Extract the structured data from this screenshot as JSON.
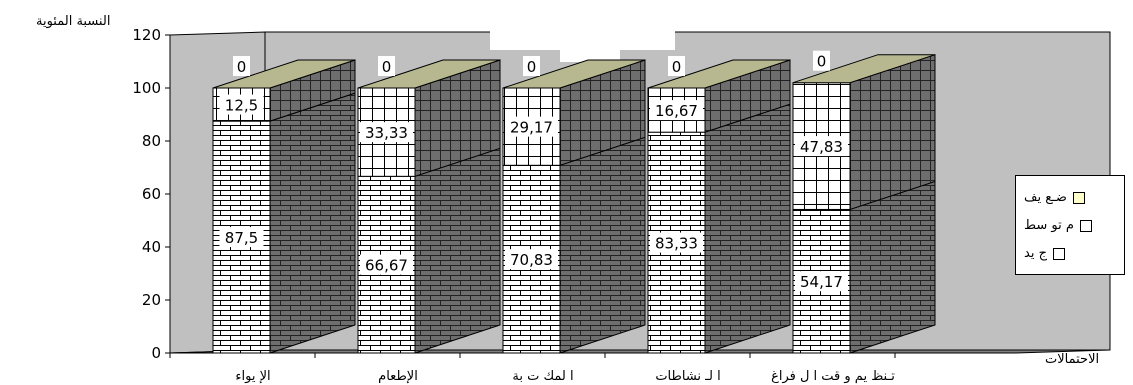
{
  "chart_data": {
    "type": "bar",
    "stacked": true,
    "three_d": true,
    "title": "",
    "ylabel": "النسبة المئوية",
    "xlabel": "الاحتمالات",
    "ylim": [
      0,
      120
    ],
    "yticks": [
      0,
      20,
      40,
      60,
      80,
      100,
      120
    ],
    "categories": [
      "الإ يواء",
      "الإطعام",
      "ا لمك ت بة",
      "ا لـ نشاطات",
      "تـنظ يم و قت ا ل فراغ"
    ],
    "series": [
      {
        "name": "ج يد",
        "values": [
          87.5,
          66.67,
          70.83,
          83.33,
          54.17
        ],
        "labels": [
          "87,5",
          "66,67",
          "70,83",
          "83,33",
          "54,17"
        ]
      },
      {
        "name": "م تو سط",
        "values": [
          12.5,
          33.33,
          29.17,
          16.67,
          47.83
        ],
        "labels": [
          "12,5",
          "33,33",
          "29,17",
          "16,67",
          "47,83"
        ]
      },
      {
        "name": "ضـع يف",
        "values": [
          0,
          0,
          0,
          0,
          0
        ],
        "labels": [
          "0",
          "0",
          "0",
          "0",
          "0"
        ]
      }
    ],
    "legend_position": "right",
    "grid": false,
    "colors": {
      "wall": "#c0c0c0",
      "floor": "#808080",
      "weak": "#ffffcc",
      "top": "#b7b790",
      "side": "#737373",
      "front": "#ffffff"
    }
  }
}
